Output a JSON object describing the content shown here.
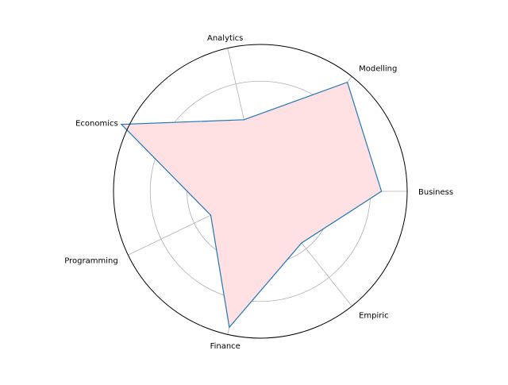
{
  "chart_data": {
    "type": "radar",
    "categories": [
      "Business",
      "Modelling",
      "Analytics",
      "Economics",
      "Programming",
      "Finance",
      "Empiric"
    ],
    "values": [
      3.3,
      3.8,
      2.0,
      4.2,
      1.5,
      3.8,
      1.8
    ],
    "rmax": 4.0,
    "rticks": [
      1,
      2,
      3
    ],
    "grid": true,
    "colors": {
      "line": "#1f77b4",
      "fill": "#ffe0e3",
      "grid": "#b0b0b0",
      "frame": "#000000"
    }
  }
}
